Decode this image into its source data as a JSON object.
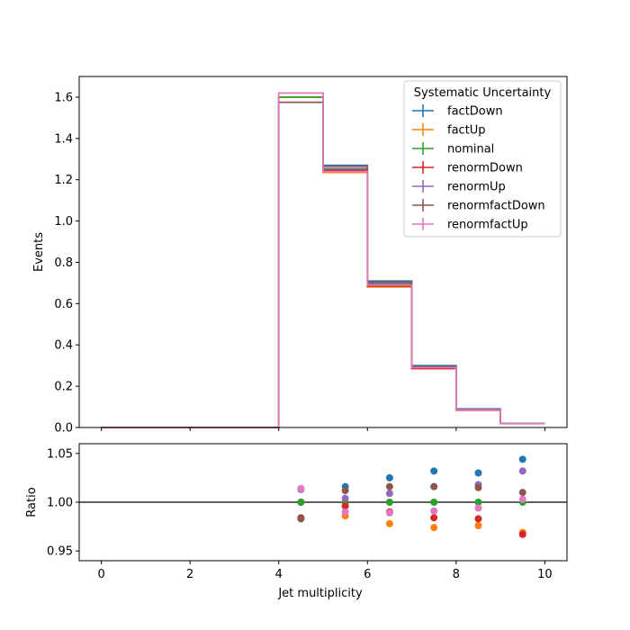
{
  "colors": {
    "factDown": "#1f77b4",
    "factUp": "#ff7f0e",
    "nominal": "#2ca02c",
    "renormDown": "#d62728",
    "renormUp": "#9467bd",
    "renormfactDown": "#8c564b",
    "renormfactUp": "#e377c2"
  },
  "chart_data": [
    {
      "type": "step-histogram",
      "title": "",
      "xlabel": "",
      "ylabel": "Events",
      "xlim": [
        -0.5,
        10.5
      ],
      "ylim": [
        0,
        1.7
      ],
      "xticks": [
        0,
        2,
        4,
        6,
        8,
        10
      ],
      "yticks": [
        0.0,
        0.2,
        0.4,
        0.6,
        0.8,
        1.0,
        1.2,
        1.4,
        1.6
      ],
      "bin_edges": [
        0,
        1,
        2,
        3,
        4,
        5,
        6,
        7,
        8,
        9,
        10
      ],
      "legend": {
        "title": "Systematic Uncertainty",
        "placement": "top-right"
      },
      "series": [
        {
          "name": "factDown",
          "values": [
            0,
            0,
            0,
            0,
            1.6,
            1.27,
            0.71,
            0.3,
            0.09,
            0.02
          ]
        },
        {
          "name": "factUp",
          "values": [
            0,
            0,
            0,
            0,
            1.6,
            1.235,
            0.68,
            0.285,
            0.083,
            0.019
          ]
        },
        {
          "name": "nominal",
          "values": [
            0,
            0,
            0,
            0,
            1.6,
            1.25,
            0.695,
            0.29,
            0.085,
            0.0195
          ]
        },
        {
          "name": "renormDown",
          "values": [
            0,
            0,
            0,
            0,
            1.575,
            1.245,
            0.685,
            0.285,
            0.084,
            0.019
          ]
        },
        {
          "name": "renormUp",
          "values": [
            0,
            0,
            0,
            0,
            1.62,
            1.255,
            0.7,
            0.295,
            0.087,
            0.02
          ]
        },
        {
          "name": "renormfactDown",
          "values": [
            0,
            0,
            0,
            0,
            1.575,
            1.265,
            0.705,
            0.295,
            0.087,
            0.0197
          ]
        },
        {
          "name": "renormfactUp",
          "values": [
            0,
            0,
            0,
            0,
            1.62,
            1.24,
            0.69,
            0.29,
            0.085,
            0.0196
          ]
        }
      ]
    },
    {
      "type": "scatter",
      "title": "",
      "xlabel": "Jet multiplicity",
      "ylabel": "Ratio",
      "xlim": [
        -0.5,
        10.5
      ],
      "ylim": [
        0.94,
        1.06
      ],
      "xticks": [
        0,
        2,
        4,
        6,
        8,
        10
      ],
      "yticks": [
        0.95,
        1.0,
        1.05
      ],
      "reference_line": 1.0,
      "x": [
        4.5,
        5.5,
        6.5,
        7.5,
        8.5,
        9.5
      ],
      "series": [
        {
          "name": "factDown",
          "values": [
            1.0,
            1.016,
            1.025,
            1.032,
            1.03,
            1.044
          ]
        },
        {
          "name": "factUp",
          "values": [
            1.0,
            0.986,
            0.978,
            0.974,
            0.976,
            0.969
          ]
        },
        {
          "name": "nominal",
          "values": [
            1.0,
            1.0,
            1.0,
            1.0,
            1.0,
            1.0
          ]
        },
        {
          "name": "renormDown",
          "values": [
            0.984,
            0.996,
            0.99,
            0.984,
            0.983,
            0.967
          ]
        },
        {
          "name": "renormUp",
          "values": [
            1.013,
            1.004,
            1.009,
            1.016,
            1.018,
            1.032
          ]
        },
        {
          "name": "renormfactDown",
          "values": [
            0.983,
            1.012,
            1.016,
            1.016,
            1.015,
            1.01
          ]
        },
        {
          "name": "renormfactUp",
          "values": [
            1.014,
            0.99,
            0.989,
            0.991,
            0.994,
            1.003
          ]
        }
      ]
    }
  ]
}
